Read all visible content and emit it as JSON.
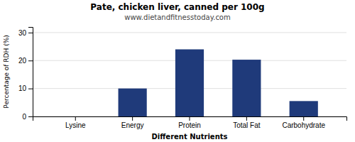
{
  "chart_data": {
    "type": "bar",
    "title": "Pate, chicken liver, canned per 100g",
    "subtitle": "www.dietandfitnesstoday.com",
    "xlabel": "Different Nutrients",
    "ylabel": "Percentage of RDH (%)",
    "categories": [
      "Lysine",
      "Energy",
      "Protein",
      "Total Fat",
      "Carbohydrate"
    ],
    "values": [
      0,
      10,
      24,
      20.3,
      5.5
    ],
    "color": "#1F3A7A",
    "ylim": [
      0,
      32
    ],
    "yticks": [
      0,
      10,
      20,
      30
    ],
    "grid": true
  }
}
